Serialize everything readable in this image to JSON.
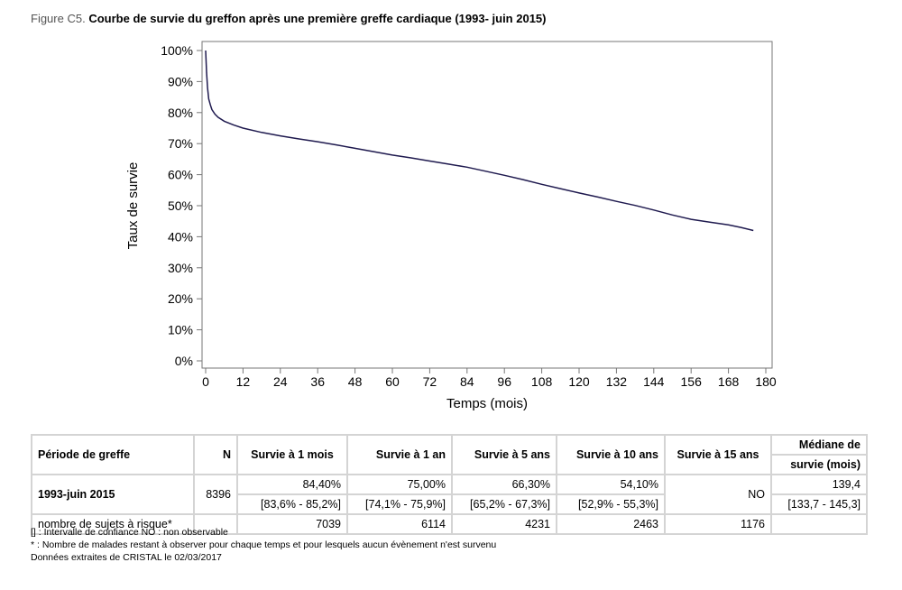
{
  "title": {
    "prefix": "Figure C5.",
    "text": "Courbe de survie du greffon après une première greffe cardiaque (1993- juin 2015)"
  },
  "chart_data": {
    "type": "line",
    "xlabel": "Temps (mois)",
    "ylabel": "Taux de survie",
    "xlim": [
      0,
      180
    ],
    "ylim": [
      0,
      100
    ],
    "xticks": [
      0,
      12,
      24,
      36,
      48,
      60,
      72,
      84,
      96,
      108,
      120,
      132,
      144,
      156,
      168,
      180
    ],
    "yticks": [
      "0%",
      "10%",
      "20%",
      "30%",
      "40%",
      "50%",
      "60%",
      "70%",
      "80%",
      "90%",
      "100%"
    ],
    "grid": false,
    "color": "#1f1a4f",
    "x": [
      0,
      0.3,
      0.6,
      1,
      1.5,
      2,
      3,
      4,
      6,
      9,
      12,
      18,
      24,
      30,
      36,
      42,
      48,
      54,
      60,
      66,
      72,
      78,
      84,
      90,
      96,
      102,
      108,
      114,
      120,
      126,
      132,
      138,
      144,
      150,
      156,
      162,
      168,
      172,
      176
    ],
    "y": [
      100,
      93,
      88,
      84.4,
      82.5,
      81,
      79.5,
      78.5,
      77.2,
      76,
      75,
      73.6,
      72.5,
      71.5,
      70.6,
      69.6,
      68.5,
      67.4,
      66.3,
      65.4,
      64.4,
      63.4,
      62.4,
      61.1,
      59.8,
      58.4,
      56.9,
      55.5,
      54.1,
      52.8,
      51.4,
      50.1,
      48.6,
      47,
      45.6,
      44.7,
      43.8,
      43,
      42
    ]
  },
  "table": {
    "headers": [
      "Période de greffe",
      "N",
      "Survie à 1 mois",
      "Survie à 1 an",
      "Survie à 5 ans",
      "Survie à 10 ans",
      "Survie à 15 ans",
      "Médiane de",
      "survie (mois)"
    ],
    "row": {
      "period": "1993-juin 2015",
      "n": "8396",
      "values": [
        "84,40%",
        "75,00%",
        "66,30%",
        "54,10%"
      ],
      "ci": [
        "[83,6% - 85,2%]",
        "[74,1% - 75,9%]",
        "[65,2% - 67,3%]",
        "[52,9% - 55,3%]"
      ],
      "s15": "NO",
      "median": "139,4",
      "median_ci": "[133,7 - 145,3]"
    },
    "risk": {
      "label": "nombre de sujets à risque*",
      "values": [
        "7039",
        "6114",
        "4231",
        "2463",
        "1176"
      ]
    }
  },
  "notes": [
    "[] : Intervalle de confiance NO : non observable",
    "* : Nombre de malades restant à observer pour chaque temps et pour lesquels aucun évènement n'est survenu",
    "Données extraites de CRISTAL le 02/03/2017"
  ]
}
